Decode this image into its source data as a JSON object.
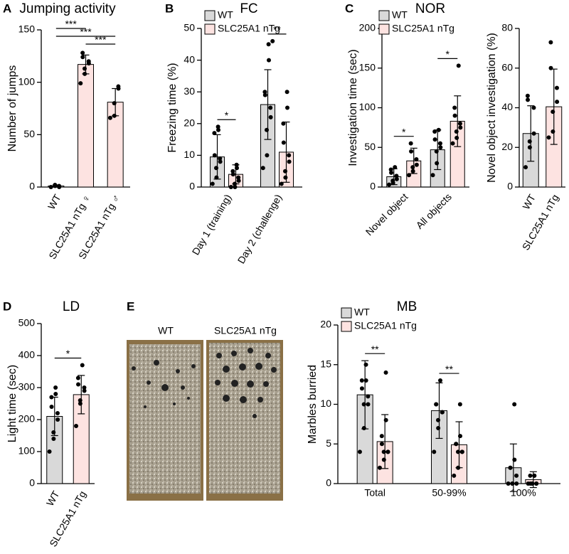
{
  "chart_data": [
    {
      "type": "bar",
      "panel": "A",
      "title": "Jumping activity",
      "y_label": "Number of jumps",
      "categories": [
        "WT",
        "SLC25A1 nTg ♀",
        "SLC25A1 nTg ♂"
      ],
      "values": [
        1,
        117,
        81
      ],
      "errors": [
        1,
        9,
        13
      ],
      "points": [
        [
          0,
          1,
          2,
          0,
          1
        ],
        [
          99,
          108,
          113,
          118,
          120,
          124,
          128
        ],
        [
          66,
          68,
          80,
          94,
          96
        ]
      ],
      "colors": [
        "#d9d9d9",
        "#fde3e1",
        "#fde3e1"
      ],
      "ylim": [
        0,
        150
      ],
      "yticks": [
        0,
        50,
        100,
        150
      ],
      "annotations": [
        {
          "text": "***",
          "from": 0,
          "to": 1
        },
        {
          "text": "***",
          "from": 0,
          "to": 2
        },
        {
          "text": "***",
          "from": 1,
          "to": 2
        }
      ]
    },
    {
      "type": "grouped",
      "panel": "B",
      "title": "FC",
      "y_label": "Freezing time (%)",
      "categories": [
        "Day 1 (training)",
        "Day 2 (challenge)"
      ],
      "series": [
        {
          "name": "WT",
          "color": "#d9d9d9",
          "values": [
            9.5,
            26
          ],
          "errors": [
            7,
            11
          ],
          "points": [
            [
              1,
              3,
              6,
              8,
              9,
              10,
              17,
              18,
              19
            ],
            [
              6,
              10,
              18,
              22,
              25,
              29,
              30,
              40,
              45,
              46
            ]
          ]
        },
        {
          "name": "SLC25A1 nTg",
          "color": "#fde3e1",
          "values": [
            4,
            11
          ],
          "errors": [
            3,
            9.5
          ],
          "points": [
            [
              0,
              0,
              1,
              2,
              3,
              4,
              5,
              6,
              7
            ],
            [
              1,
              3,
              5,
              8,
              10,
              14,
              20,
              25,
              30
            ]
          ]
        }
      ],
      "ylim": [
        0,
        50
      ],
      "yticks": [
        0,
        10,
        20,
        30,
        40,
        50
      ],
      "annotations": [
        {
          "text": "*",
          "category": 0
        },
        {
          "text": "**",
          "category": 1
        }
      ]
    },
    {
      "type": "grouped",
      "panel": "C",
      "title": "NOR",
      "y_label": "Investigation time (sec)",
      "categories": [
        "Novel object",
        "All objects"
      ],
      "series": [
        {
          "name": "WT",
          "color": "#d9d9d9",
          "values": [
            13,
            47
          ],
          "errors": [
            10,
            25
          ],
          "points": [
            [
              3,
              5,
              8,
              10,
              14,
              18,
              22,
              25
            ],
            [
              15,
              30,
              45,
              50,
              55,
              60,
              70,
              72
            ]
          ]
        },
        {
          "name": "SLC25A1 nTg",
          "color": "#fde3e1",
          "values": [
            33,
            83
          ],
          "errors": [
            16,
            32
          ],
          "points": [
            [
              15,
              20,
              25,
              28,
              35,
              45,
              55
            ],
            [
              55,
              62,
              70,
              75,
              80,
              90,
              100,
              153
            ]
          ]
        }
      ],
      "ylim": [
        0,
        200
      ],
      "yticks": [
        0,
        50,
        100,
        150,
        200
      ],
      "annotations": [
        {
          "text": "*",
          "category": 0
        },
        {
          "text": "*",
          "category": 1
        }
      ]
    },
    {
      "type": "bar",
      "y_label": "Novel object investigation (%)",
      "categories": [
        "WT",
        "SLC25A1 nTg"
      ],
      "values": [
        27,
        40.5
      ],
      "errors": [
        14,
        19
      ],
      "points": [
        [
          10,
          20,
          23,
          27,
          40,
          44,
          46
        ],
        [
          25,
          28,
          38,
          43,
          50,
          60,
          73
        ]
      ],
      "colors": [
        "#d9d9d9",
        "#fde3e1"
      ],
      "ylim": [
        0,
        80
      ],
      "yticks": [
        0,
        20,
        40,
        60,
        80
      ]
    },
    {
      "type": "bar",
      "panel": "D",
      "title": "LD",
      "y_label": "Light time (sec)",
      "categories": [
        "WT",
        "SLC25A1 nTg"
      ],
      "values": [
        210,
        278
      ],
      "errors": [
        60,
        60
      ],
      "points": [
        [
          100,
          140,
          160,
          200,
          220,
          240,
          270,
          280,
          300
        ],
        [
          180,
          250,
          260,
          290,
          300,
          310,
          330,
          370
        ]
      ],
      "colors": [
        "#d9d9d9",
        "#fde3e1"
      ],
      "ylim": [
        0,
        500
      ],
      "yticks": [
        0,
        100,
        200,
        300,
        400,
        500
      ],
      "annotations": [
        {
          "text": "*",
          "from": 0,
          "to": 1
        }
      ]
    },
    {
      "type": "grouped",
      "title": "MB",
      "y_label": "Marbles burried",
      "categories": [
        "Total",
        "50-99%",
        "100%"
      ],
      "series": [
        {
          "name": "WT",
          "color": "#d9d9d9",
          "values": [
            11.2,
            9.2,
            2
          ],
          "errors": [
            4.3,
            3.5,
            3
          ],
          "points": [
            [
              4,
              7,
              10,
              10,
              11,
              12,
              13,
              13,
              15
            ],
            [
              4,
              7,
              8,
              9,
              9,
              10,
              10,
              13
            ],
            [
              0,
              0,
              0,
              0,
              1,
              2,
              2,
              3,
              10
            ]
          ]
        },
        {
          "name": "SLC25A1 nTg",
          "color": "#fde3e1",
          "values": [
            5.3,
            4.9,
            0.5
          ],
          "errors": [
            3.4,
            2.9,
            1
          ],
          "points": [
            [
              2,
              3,
              4,
              4,
              4,
              5,
              6,
              8,
              14
            ],
            [
              1,
              2,
              4,
              4,
              4,
              5,
              5,
              6,
              10
            ],
            [
              0,
              0,
              0,
              0,
              0,
              0,
              1,
              1,
              1
            ]
          ]
        }
      ],
      "ylim": [
        0,
        20
      ],
      "yticks": [
        0,
        5,
        10,
        15,
        20
      ],
      "annotations": [
        {
          "text": "**",
          "category": 0
        },
        {
          "text": "**",
          "category": 1
        }
      ]
    }
  ],
  "photos": {
    "panel": "E",
    "labels": [
      "WT",
      "SLC25A1 nTg"
    ]
  }
}
